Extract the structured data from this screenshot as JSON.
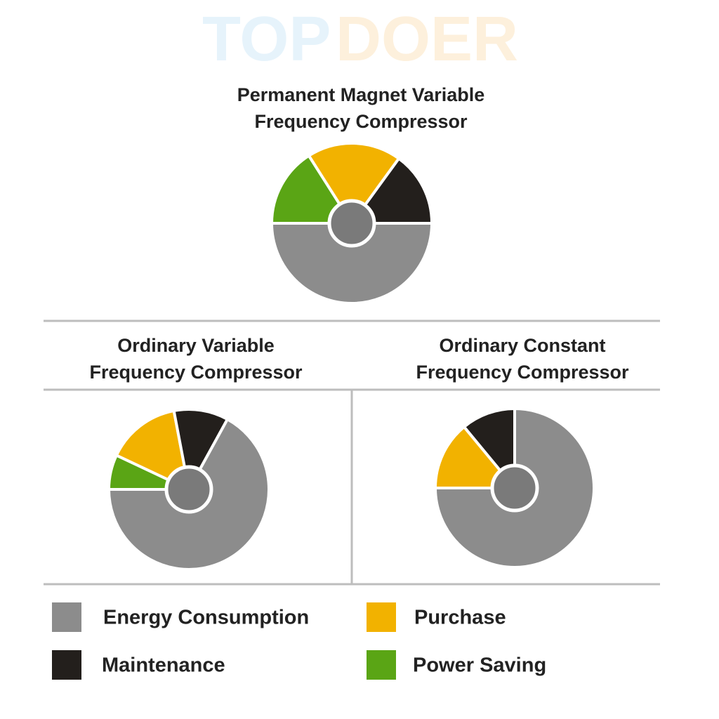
{
  "watermark": [
    "TOP",
    "DOER"
  ],
  "legend": [
    {
      "label": "Energy Consumption",
      "color": "#8c8c8c"
    },
    {
      "label": "Purchase",
      "color": "#f2b200"
    },
    {
      "label": "Maintenance",
      "color": "#231f1c"
    },
    {
      "label": "Power Saving",
      "color": "#5aa515"
    }
  ],
  "chart_data": [
    {
      "type": "pie",
      "title": [
        "Permanent Magnet Variable",
        "Frequency Compressor"
      ],
      "values": [
        50,
        19,
        15,
        16
      ]
    },
    {
      "type": "pie",
      "title": [
        "Ordinary Variable",
        "Frequency Compressor"
      ],
      "values": [
        67,
        15,
        11,
        7
      ]
    },
    {
      "type": "pie",
      "title": [
        "Ordinary Constant",
        "Frequency Compressor"
      ],
      "values": [
        75,
        14,
        11,
        0
      ]
    }
  ]
}
